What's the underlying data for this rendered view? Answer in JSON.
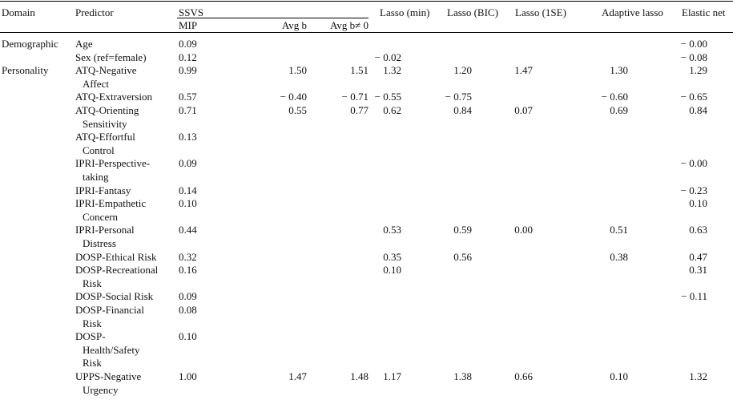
{
  "headers": {
    "domain": "Domain",
    "predictor": "Predictor",
    "ssvs": "SSVS",
    "mip": "MIP",
    "avg_b": "Avg b",
    "avg_b_nz": "Avg b≠ 0",
    "lasso_min": "Lasso (min)",
    "lasso_bic": "Lasso (BIC)",
    "lasso_1se": "Lasso (1SE)",
    "adaptive": "Adaptive lasso",
    "elastic": "Elastic net"
  },
  "rows": [
    {
      "domain": "Demographic",
      "predictor": [
        "Age"
      ],
      "mip": "0.09",
      "avg_b": "",
      "avg_b_nz": "",
      "lasso_min": "",
      "lasso_bic": "",
      "lasso_1se": "",
      "adaptive": "",
      "elastic": "− 0.00"
    },
    {
      "domain": "",
      "predictor": [
        "Sex (ref=female)"
      ],
      "mip": "0.12",
      "avg_b": "",
      "avg_b_nz": "",
      "lasso_min": "− 0.02",
      "lasso_bic": "",
      "lasso_1se": "",
      "adaptive": "",
      "elastic": "− 0.08"
    },
    {
      "domain": "Personality",
      "predictor": [
        "ATQ-Negative",
        "Affect"
      ],
      "mip": "0.99",
      "avg_b": "1.50",
      "avg_b_nz": "1.51",
      "lasso_min": "1.32",
      "lasso_bic": "1.20",
      "lasso_1se": "1.47",
      "adaptive": "1.30",
      "elastic": "1.29"
    },
    {
      "domain": "",
      "predictor": [
        "ATQ-Extraversion"
      ],
      "mip": "0.57",
      "avg_b": "− 0.40",
      "avg_b_nz": "− 0.71",
      "lasso_min": "− 0.55",
      "lasso_bic": "− 0.75",
      "lasso_1se": "",
      "adaptive": "− 0.60",
      "elastic": "− 0.65"
    },
    {
      "domain": "",
      "predictor": [
        "ATQ-Orienting",
        "Sensitivity"
      ],
      "mip": "0.71",
      "avg_b": "0.55",
      "avg_b_nz": "0.77",
      "lasso_min": "0.62",
      "lasso_bic": "0.84",
      "lasso_1se": "0.07",
      "adaptive": "0.69",
      "elastic": "0.84"
    },
    {
      "domain": "",
      "predictor": [
        "ATQ-Effortful",
        "Control"
      ],
      "mip": "0.13",
      "avg_b": "",
      "avg_b_nz": "",
      "lasso_min": "",
      "lasso_bic": "",
      "lasso_1se": "",
      "adaptive": "",
      "elastic": ""
    },
    {
      "domain": "",
      "predictor": [
        "IPRI-Perspective-",
        "taking"
      ],
      "mip": "0.09",
      "avg_b": "",
      "avg_b_nz": "",
      "lasso_min": "",
      "lasso_bic": "",
      "lasso_1se": "",
      "adaptive": "",
      "elastic": "− 0.00"
    },
    {
      "domain": "",
      "predictor": [
        "IPRI-Fantasy"
      ],
      "mip": "0.14",
      "avg_b": "",
      "avg_b_nz": "",
      "lasso_min": "",
      "lasso_bic": "",
      "lasso_1se": "",
      "adaptive": "",
      "elastic": "− 0.23"
    },
    {
      "domain": "",
      "predictor": [
        "IPRI-Empathetic",
        "Concern"
      ],
      "mip": "0.10",
      "avg_b": "",
      "avg_b_nz": "",
      "lasso_min": "",
      "lasso_bic": "",
      "lasso_1se": "",
      "adaptive": "",
      "elastic": "0.10"
    },
    {
      "domain": "",
      "predictor": [
        "IPRI-Personal",
        "Distress"
      ],
      "mip": "0.44",
      "avg_b": "",
      "avg_b_nz": "",
      "lasso_min": "0.53",
      "lasso_bic": "0.59",
      "lasso_1se": "0.00",
      "adaptive": "0.51",
      "elastic": "0.63"
    },
    {
      "domain": "",
      "predictor": [
        "DOSP-Ethical Risk"
      ],
      "mip": "0.32",
      "avg_b": "",
      "avg_b_nz": "",
      "lasso_min": "0.35",
      "lasso_bic": "0.56",
      "lasso_1se": "",
      "adaptive": "0.38",
      "elastic": "0.47"
    },
    {
      "domain": "",
      "predictor": [
        "DOSP-Recreational",
        "Risk"
      ],
      "mip": "0.16",
      "avg_b": "",
      "avg_b_nz": "",
      "lasso_min": "0.10",
      "lasso_bic": "",
      "lasso_1se": "",
      "adaptive": "",
      "elastic": "0.31"
    },
    {
      "domain": "",
      "predictor": [
        "DOSP-Social Risk"
      ],
      "mip": "0.09",
      "avg_b": "",
      "avg_b_nz": "",
      "lasso_min": "",
      "lasso_bic": "",
      "lasso_1se": "",
      "adaptive": "",
      "elastic": "− 0.11"
    },
    {
      "domain": "",
      "predictor": [
        "DOSP-Financial",
        "Risk"
      ],
      "mip": "0.08",
      "avg_b": "",
      "avg_b_nz": "",
      "lasso_min": "",
      "lasso_bic": "",
      "lasso_1se": "",
      "adaptive": "",
      "elastic": ""
    },
    {
      "domain": "",
      "predictor": [
        "DOSP-",
        "Health/Safety",
        "Risk"
      ],
      "mip": "0.10",
      "avg_b": "",
      "avg_b_nz": "",
      "lasso_min": "",
      "lasso_bic": "",
      "lasso_1se": "",
      "adaptive": "",
      "elastic": ""
    },
    {
      "domain": "",
      "predictor": [
        "UPPS-Negative",
        "Urgency"
      ],
      "mip": "1.00",
      "avg_b": "1.47",
      "avg_b_nz": "1.48",
      "lasso_min": "1.17",
      "lasso_bic": "1.38",
      "lasso_1se": "0.66",
      "adaptive": "0.10",
      "elastic": "1.32"
    }
  ]
}
